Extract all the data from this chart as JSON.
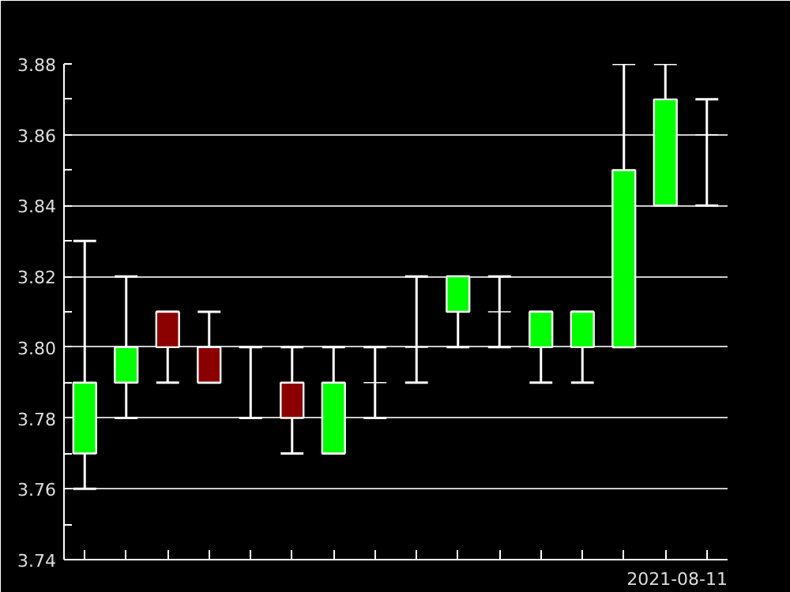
{
  "chart_data": {
    "type": "candlestick",
    "xlabel": "2021-08-11",
    "categories": [
      null,
      null,
      null,
      null,
      null,
      null,
      null,
      null,
      null,
      null,
      null,
      null,
      null,
      null,
      null,
      null
    ],
    "ohlc": [
      [
        3.77,
        3.83,
        3.76,
        3.79
      ],
      [
        3.79,
        3.82,
        3.78,
        3.8
      ],
      [
        3.81,
        3.81,
        3.79,
        3.8
      ],
      [
        3.8,
        3.81,
        3.79,
        3.79
      ],
      [
        3.8,
        3.8,
        3.78,
        3.8
      ],
      [
        3.79,
        3.8,
        3.77,
        3.78
      ],
      [
        3.77,
        3.8,
        3.77,
        3.79
      ],
      [
        3.79,
        3.8,
        3.78,
        3.79
      ],
      [
        3.8,
        3.82,
        3.79,
        3.8
      ],
      [
        3.81,
        3.82,
        3.8,
        3.82
      ],
      [
        3.81,
        3.82,
        3.8,
        3.81
      ],
      [
        3.8,
        3.81,
        3.79,
        3.81
      ],
      [
        3.8,
        3.81,
        3.79,
        3.81
      ],
      [
        3.8,
        3.88,
        3.8,
        3.85
      ],
      [
        3.84,
        3.88,
        3.84,
        3.87
      ],
      [
        3.86,
        3.87,
        3.84,
        3.86
      ]
    ],
    "colors": [
      "#00ff00",
      "#00ff00",
      "#8b0000",
      "#8b0000",
      "#ffffff",
      "#8b0000",
      "#00ff00",
      "#ffffff",
      "#ffffff",
      "#00ff00",
      "#ffffff",
      "#00ff00",
      "#00ff00",
      "#00ff00",
      "#00ff00",
      "#ffffff"
    ],
    "ylim": [
      3.74,
      3.88
    ],
    "yticks": [
      {
        "value": 3.74,
        "label": "3.74"
      },
      {
        "value": 3.75,
        "label": null
      },
      {
        "value": 3.76,
        "label": "3.76"
      },
      {
        "value": 3.77,
        "label": null
      },
      {
        "value": 3.78,
        "label": "3.78"
      },
      {
        "value": 3.79,
        "label": null
      },
      {
        "value": 3.8,
        "label": "3.80"
      },
      {
        "value": 3.81,
        "label": null
      },
      {
        "value": 3.82,
        "label": "3.82"
      },
      {
        "value": 3.83,
        "label": null
      },
      {
        "value": 3.84,
        "label": "3.84"
      },
      {
        "value": 3.85,
        "label": null
      },
      {
        "value": 3.86,
        "label": "3.86"
      },
      {
        "value": 3.87,
        "label": null
      },
      {
        "value": 3.88,
        "label": "3.88"
      }
    ],
    "grid": "y",
    "tick_labels": "y"
  }
}
